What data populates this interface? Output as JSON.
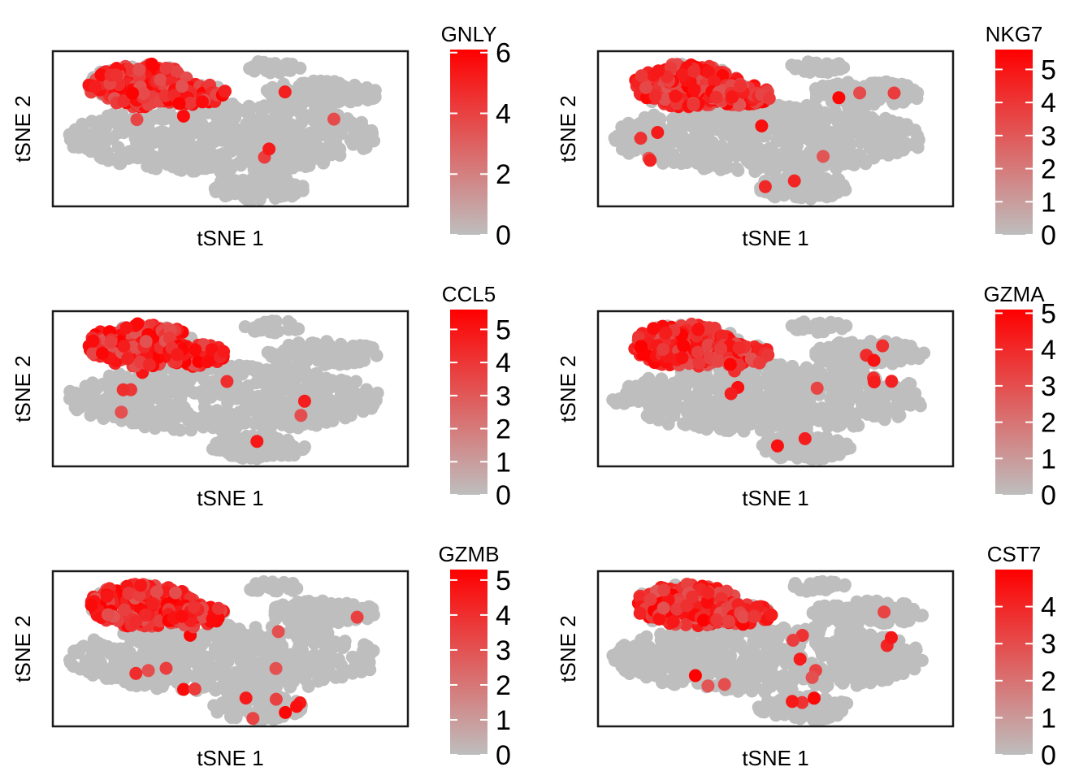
{
  "colors": {
    "low": "#bebebe",
    "high": "#ff0000"
  },
  "chart_data": [
    {
      "type": "scatter",
      "title": "GNLY",
      "xlabel": "tSNE 1",
      "ylabel": "tSNE 2",
      "legend_ticks": [
        0,
        2,
        4,
        6
      ],
      "legend_max": 6.1
    },
    {
      "type": "scatter",
      "title": "NKG7",
      "xlabel": "tSNE 1",
      "ylabel": "tSNE 2",
      "legend_ticks": [
        0,
        1,
        2,
        3,
        4,
        5
      ],
      "legend_max": 5.6
    },
    {
      "type": "scatter",
      "title": "CCL5",
      "xlabel": "tSNE 1",
      "ylabel": "tSNE 2",
      "legend_ticks": [
        0,
        1,
        2,
        3,
        4,
        5
      ],
      "legend_max": 5.6
    },
    {
      "type": "scatter",
      "title": "GZMA",
      "xlabel": "tSNE 1",
      "ylabel": "tSNE 2",
      "legend_ticks": [
        0,
        1,
        2,
        3,
        4,
        5
      ],
      "legend_max": 5.1
    },
    {
      "type": "scatter",
      "title": "GZMB",
      "xlabel": "tSNE 1",
      "ylabel": "tSNE 2",
      "legend_ticks": [
        0,
        1,
        2,
        3,
        4,
        5
      ],
      "legend_max": 5.3
    },
    {
      "type": "scatter",
      "title": "CST7",
      "xlabel": "tSNE 1",
      "ylabel": "tSNE 2",
      "legend_ticks": [
        0,
        1,
        2,
        3,
        4
      ],
      "legend_max": 5.0
    }
  ]
}
